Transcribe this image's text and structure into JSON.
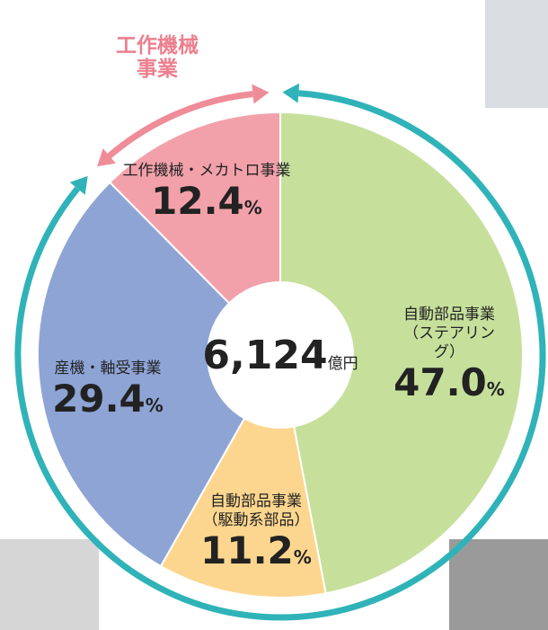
{
  "chart_data": {
    "type": "pie",
    "categories": [
      "自動部品事業\n（ステアリング）",
      "自動部品事業\n（駆動系部品）",
      "産機・軸受事業",
      "工作機械・メカトロ事業"
    ],
    "values": [
      47.0,
      11.2,
      29.4,
      12.4
    ],
    "value_labels": [
      "47.0",
      "11.2",
      "29.4",
      "12.4"
    ],
    "unit": "%",
    "colors": [
      "#c6e09c",
      "#fcd68f",
      "#8ea4d5",
      "#f2a1aa"
    ],
    "center_label": "6,124",
    "center_unit": "億円",
    "annotation": "工作機械\n事業"
  }
}
